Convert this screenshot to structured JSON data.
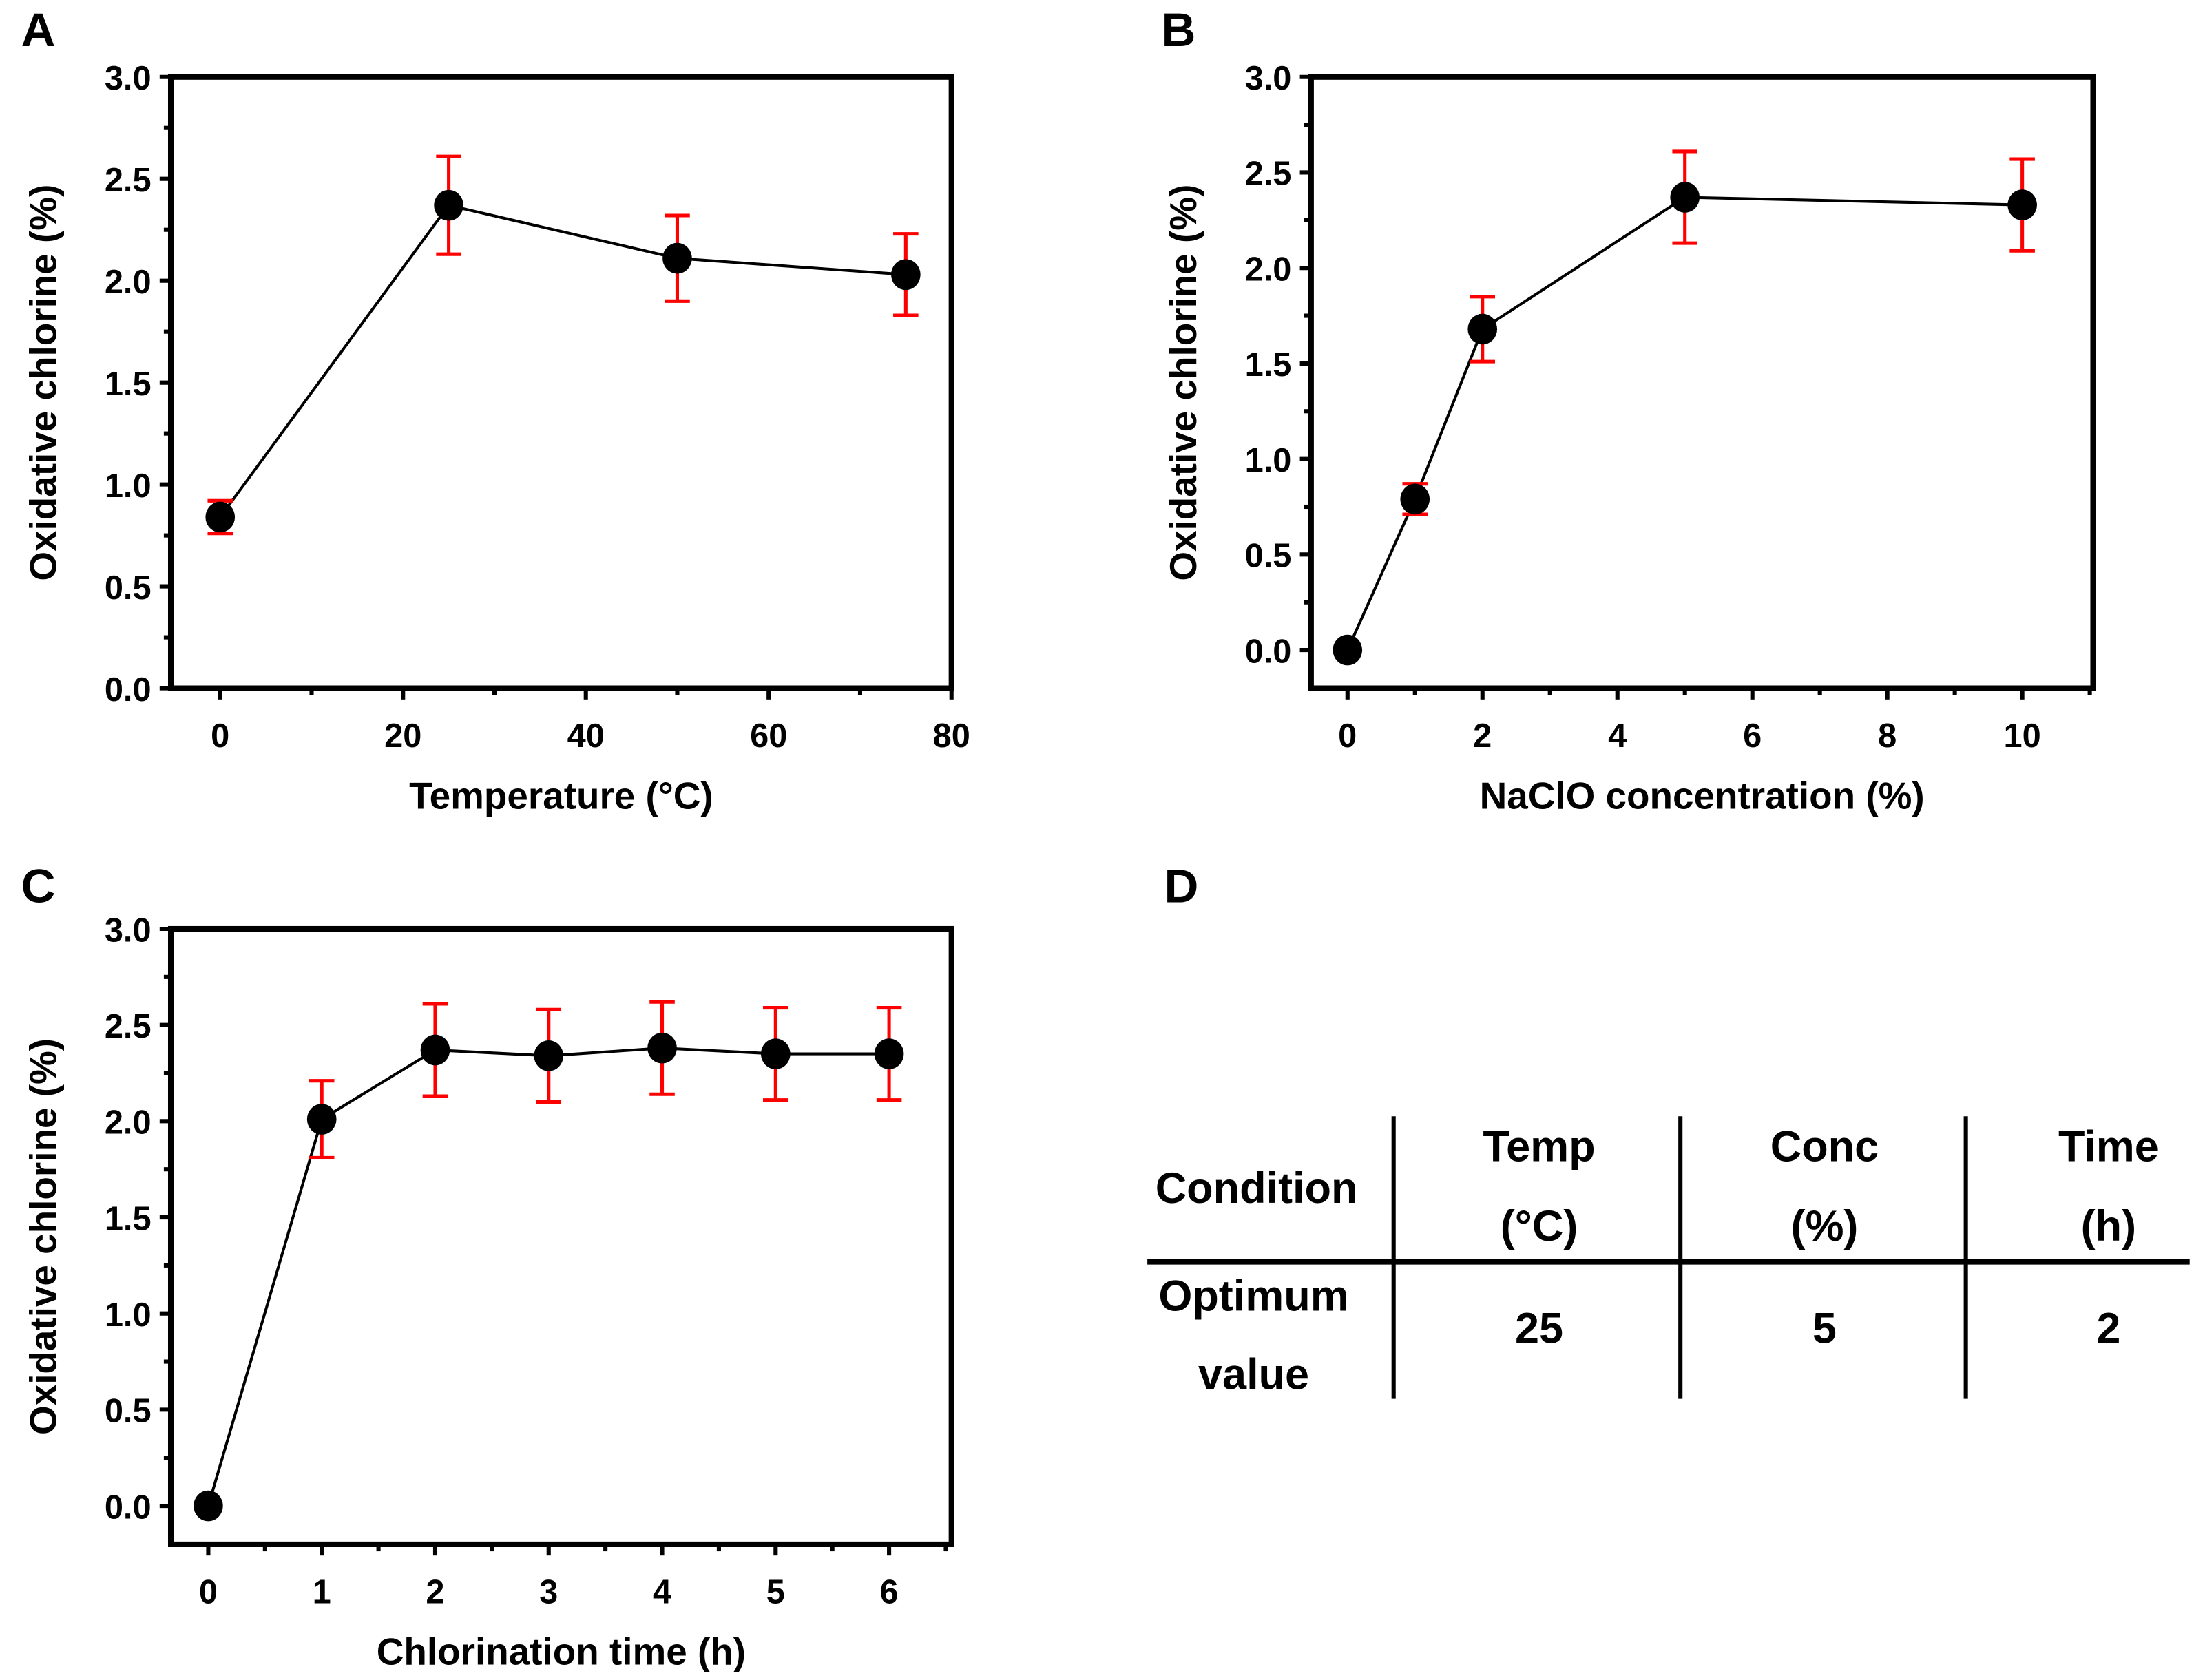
{
  "colors": {
    "marker": "#000000",
    "error_bar": "#ff0000",
    "line": "#000000",
    "frame": "#000000"
  },
  "chart_data": [
    {
      "panel": "A",
      "type": "line",
      "xlabel": "Temperature (°C)",
      "ylabel": "Oxidative chlorine (%)",
      "xlim": [
        -5.4,
        80
      ],
      "ylim": [
        0,
        3.0
      ],
      "xticks": [
        0,
        20,
        40,
        60,
        80
      ],
      "xminor": [
        10,
        30,
        50,
        70
      ],
      "yticks": [
        "0.0",
        "0.5",
        "1.0",
        "1.5",
        "2.0",
        "2.5",
        "3.0"
      ],
      "x": [
        0,
        25,
        50,
        75
      ],
      "y": [
        0.84,
        2.37,
        2.11,
        2.03
      ],
      "error": [
        0.08,
        0.24,
        0.21,
        0.2
      ]
    },
    {
      "panel": "B",
      "type": "line",
      "xlabel": "NaClO concentration (%)",
      "ylabel": "Oxidative chlorine (%)",
      "xlim": [
        -0.54,
        11.05
      ],
      "ylim": [
        -0.2,
        3.0
      ],
      "xticks": [
        0,
        2,
        4,
        6,
        8,
        10
      ],
      "xminor": [
        1,
        3,
        5,
        7,
        9,
        11
      ],
      "yticks": [
        "0.0",
        "0.5",
        "1.0",
        "1.5",
        "2.0",
        "2.5",
        "3.0"
      ],
      "x": [
        0,
        1,
        2,
        5,
        10
      ],
      "y": [
        0.0,
        0.79,
        1.68,
        2.37,
        2.33
      ],
      "error": [
        0,
        0.08,
        0.17,
        0.24,
        0.24
      ]
    },
    {
      "panel": "C",
      "type": "line",
      "xlabel": "Chlorination time (h)",
      "ylabel": "Oxidative chlorine (%)",
      "xlim": [
        -0.33,
        6.55
      ],
      "ylim": [
        -0.2,
        3.0
      ],
      "xticks": [
        0,
        1,
        2,
        3,
        4,
        5,
        6
      ],
      "xminor": [
        0.5,
        1.5,
        2.5,
        3.5,
        4.5,
        5.5,
        6.5
      ],
      "yticks": [
        "0.0",
        "0.5",
        "1.0",
        "1.5",
        "2.0",
        "2.5",
        "3.0"
      ],
      "x": [
        0,
        1,
        2,
        3,
        4,
        5,
        6
      ],
      "y": [
        0.0,
        2.01,
        2.37,
        2.34,
        2.38,
        2.35,
        2.35
      ],
      "error": [
        0,
        0.2,
        0.24,
        0.24,
        0.24,
        0.24,
        0.24
      ]
    }
  ],
  "table": {
    "panel": "D",
    "type": "table",
    "row_header_1": "Condition",
    "row_header_2_line1": "Optimum",
    "row_header_2_line2": "value",
    "columns": [
      {
        "name": "Temp",
        "unit": "(°C)",
        "value": "25"
      },
      {
        "name": "Conc",
        "unit": "(%)",
        "value": "5"
      },
      {
        "name": "Time",
        "unit": "(h)",
        "value": "2"
      }
    ]
  }
}
